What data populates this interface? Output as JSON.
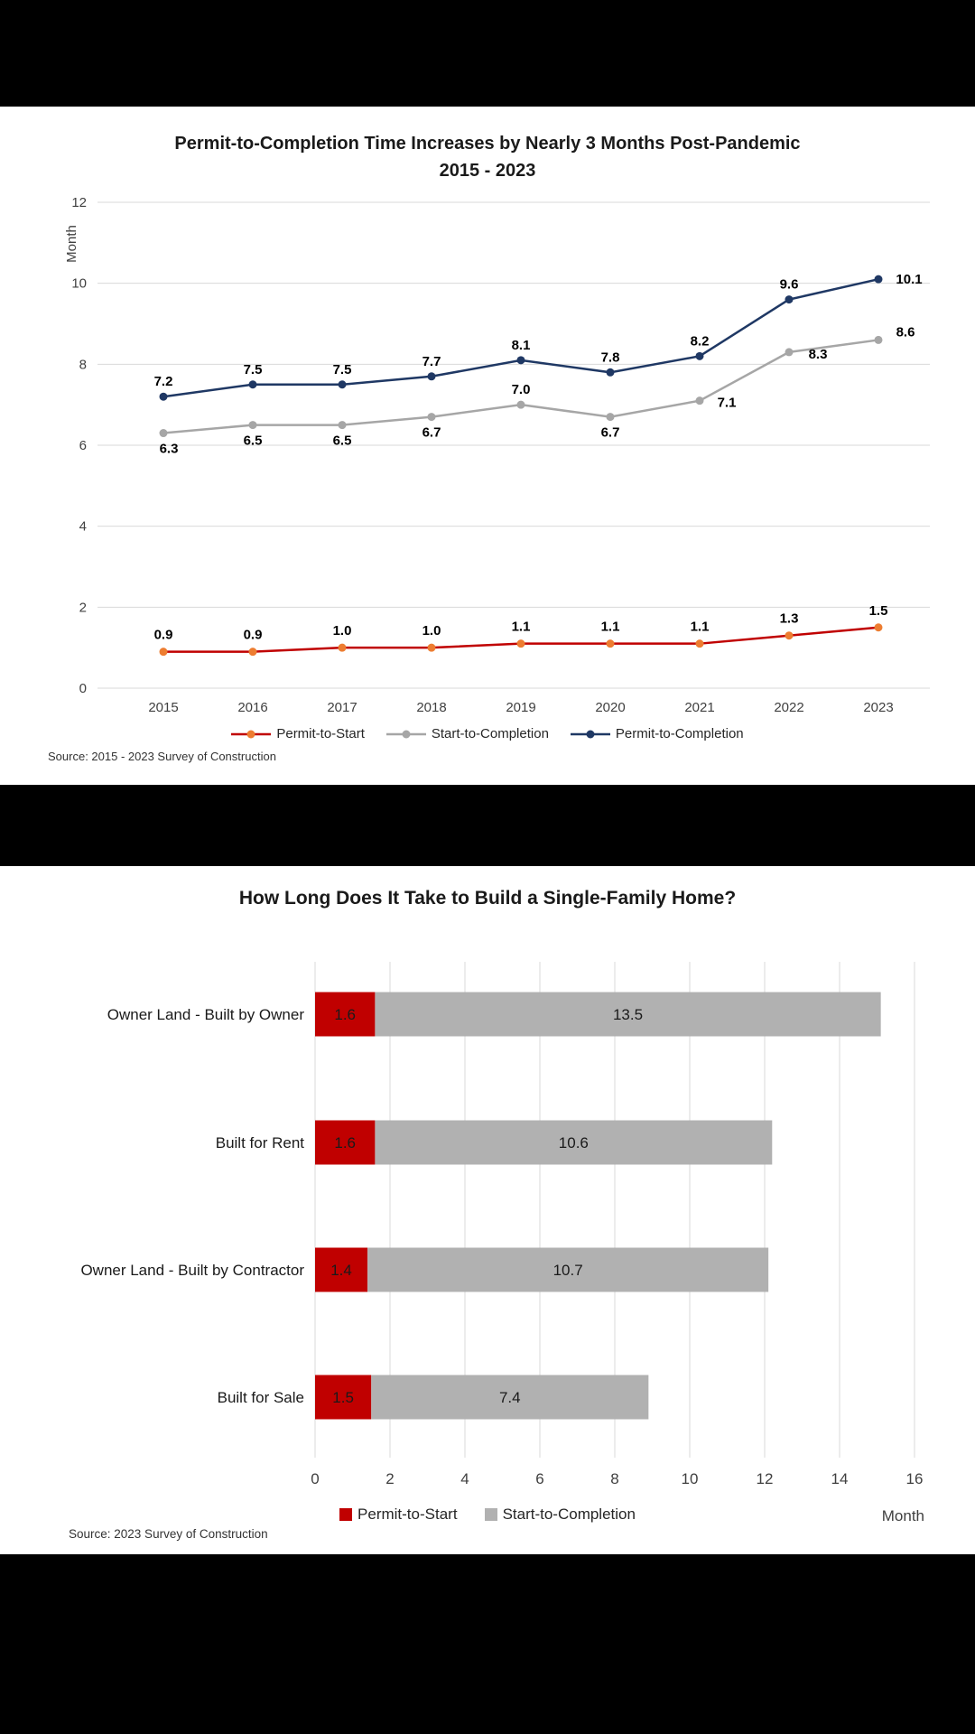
{
  "chart_data": [
    {
      "type": "line",
      "title": "Permit-to-Completion  Time Increases by Nearly  3 Months Post-Pandemic",
      "subtitle": "2015 - 2023",
      "ylabel": "Month",
      "ylim": [
        0,
        12
      ],
      "ytick_step": 2,
      "grid": "horizontal",
      "legend_position": "bottom",
      "categories": [
        "2015",
        "2016",
        "2017",
        "2018",
        "2019",
        "2020",
        "2021",
        "2022",
        "2023"
      ],
      "series": [
        {
          "name": "Permit-to-Start",
          "color": "#C00000",
          "marker_color": "#ED7D31",
          "values": [
            0.9,
            0.9,
            1.0,
            1.0,
            1.1,
            1.1,
            1.1,
            1.3,
            1.5
          ]
        },
        {
          "name": "Start-to-Completion",
          "color": "#A6A6A6",
          "marker_color": "#A6A6A6",
          "values": [
            6.3,
            6.5,
            6.5,
            6.7,
            7.0,
            6.7,
            7.1,
            8.3,
            8.6
          ]
        },
        {
          "name": "Permit-to-Completion",
          "color": "#1F3864",
          "marker_color": "#1F3864",
          "values": [
            7.2,
            7.5,
            7.5,
            7.7,
            8.1,
            7.8,
            8.2,
            9.6,
            10.1
          ]
        }
      ],
      "source": "Source: 2015 - 2023 Survey  of Construction"
    },
    {
      "type": "bar",
      "orientation": "horizontal-stacked",
      "title": "How Long Does It Take to Build  a Single-Family  Home?",
      "xlabel": "Month",
      "xlim": [
        0,
        16
      ],
      "xtick_step": 2,
      "grid": "vertical",
      "legend_position": "bottom",
      "categories": [
        "Owner Land - Built by Owner",
        "Built for Rent",
        "Owner Land - Built by Contractor",
        "Built for Sale"
      ],
      "series": [
        {
          "name": "Permit-to-Start",
          "color": "#C00000",
          "values": [
            1.6,
            1.6,
            1.4,
            1.5
          ]
        },
        {
          "name": "Start-to-Completion",
          "color": "#B1B1B1",
          "values": [
            13.5,
            10.6,
            10.7,
            7.4
          ]
        }
      ],
      "source": "Source: 2023 Survey of Construction"
    }
  ]
}
